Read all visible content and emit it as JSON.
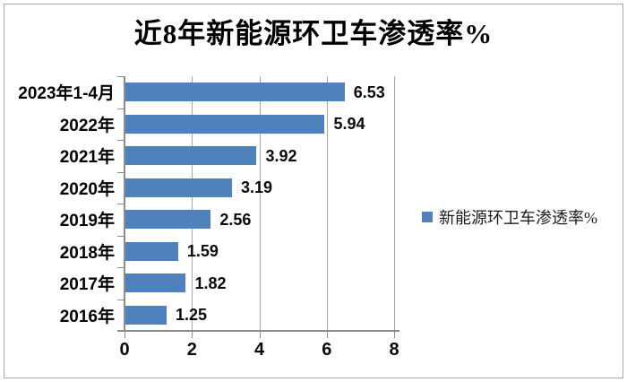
{
  "title": "近8年新能源环卫车渗透率%",
  "legend": {
    "label": "新能源环卫车渗透率%",
    "swatch_color": "#4f81bd"
  },
  "chart_data": {
    "type": "bar",
    "orientation": "horizontal",
    "title": "近8年新能源环卫车渗透率%",
    "categories": [
      "2023年1-4月",
      "2022年",
      "2021年",
      "2020年",
      "2019年",
      "2018年",
      "2017年",
      "2016年"
    ],
    "values": [
      6.53,
      5.94,
      3.92,
      3.19,
      2.56,
      1.59,
      1.82,
      1.25
    ],
    "value_labels": [
      "6.53",
      "5.94",
      "3.92",
      "3.19",
      "2.56",
      "1.59",
      "1.82",
      "1.25"
    ],
    "series_name": "新能源环卫车渗透率%",
    "xlabel": "",
    "ylabel": "",
    "xlim": [
      0,
      8
    ],
    "x_ticks": [
      0,
      2,
      4,
      6,
      8
    ],
    "grid": true,
    "legend_position": "right",
    "bar_color": "#4f81bd",
    "axis_color": "#8c8c8c",
    "gridline_color": "#a6a6a6",
    "title_color": "#000000"
  }
}
